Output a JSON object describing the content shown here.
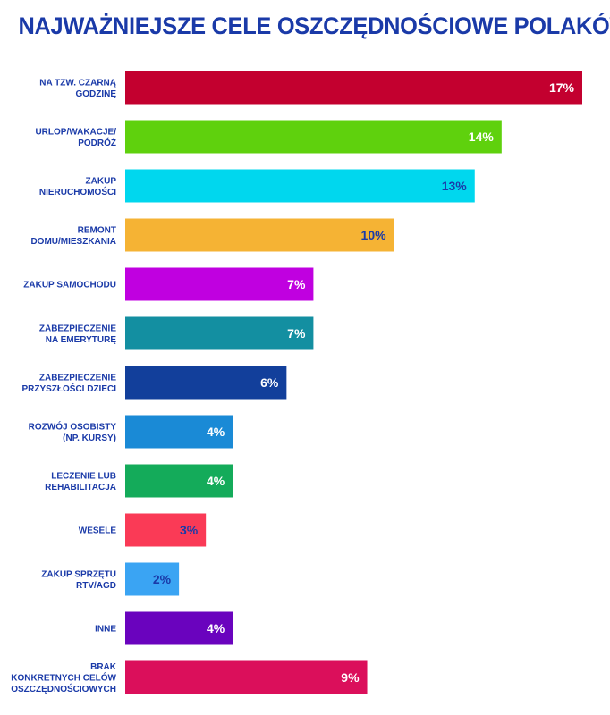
{
  "title": "NAJWAŻNIEJSZE CELE OSZCZĘDNOŚCIOWE POLAKÓW",
  "chart_data": {
    "type": "bar",
    "orientation": "horizontal",
    "title": "NAJWAŻNIEJSZE CELE OSZCZĘDNOŚCIOWE POLAKÓW",
    "unit": "%",
    "xlim": [
      0,
      17
    ],
    "grid": false,
    "categories": [
      [
        "NA TZW. CZARNĄ",
        "GODZINĘ"
      ],
      [
        "URLOP/WAKACJE/",
        "PODRÓŻ"
      ],
      [
        "ZAKUP",
        "NIERUCHOMOŚCI"
      ],
      [
        "REMONT",
        "DOMU/MIESZKANIA"
      ],
      [
        "ZAKUP SAMOCHODU"
      ],
      [
        "ZABEZPIECZENIE",
        "NA EMERYTURĘ"
      ],
      [
        "ZABEZPIECZENIE",
        "PRZYSZŁOŚCI DZIECI"
      ],
      [
        "ROZWÓJ OSOBISTY",
        "(NP. KURSY)"
      ],
      [
        "LECZENIE LUB",
        "REHABILITACJA"
      ],
      [
        "WESELE"
      ],
      [
        "ZAKUP SPRZĘTU",
        "RTV/AGD"
      ],
      [
        "INNE"
      ],
      [
        "BRAK",
        "KONKRETNYCH CELÓW",
        "OSZCZĘDNOŚCIOWYCH"
      ]
    ],
    "values": [
      17,
      14,
      13,
      10,
      7,
      7,
      6,
      4,
      4,
      3,
      2,
      4,
      9
    ],
    "value_labels": [
      "17%",
      "14%",
      "13%",
      "10%",
      "7%",
      "7%",
      "6%",
      "4%",
      "4%",
      "3%",
      "2%",
      "4%",
      "9%"
    ],
    "colors": [
      "#c3002f",
      "#5fd10d",
      "#00d7ee",
      "#f5b334",
      "#c000e0",
      "#138fa1",
      "#123f9b",
      "#1a8ad6",
      "#14ab5a",
      "#fa3a56",
      "#3aa4f3",
      "#6a03be",
      "#db0f5b"
    ],
    "label_colors": [
      "#ffffff",
      "#ffffff",
      "#1a3aa8",
      "#1a3aa8",
      "#ffffff",
      "#ffffff",
      "#ffffff",
      "#ffffff",
      "#ffffff",
      "#1a3aa8",
      "#1a3aa8",
      "#ffffff",
      "#ffffff"
    ]
  }
}
